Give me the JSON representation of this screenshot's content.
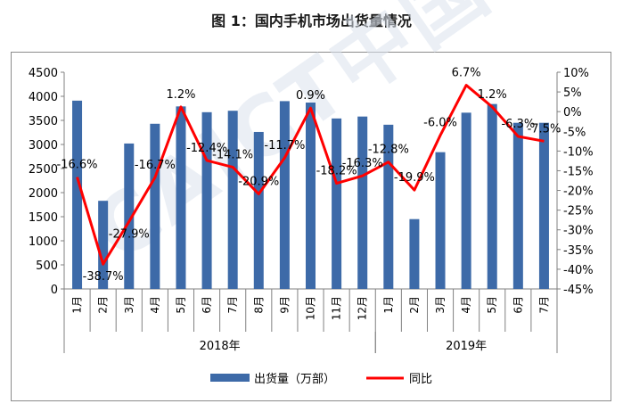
{
  "title": "图 1：国内手机市场出货量情况",
  "watermark": "CAICT中国信通院",
  "chart_data": {
    "type": "bar+line",
    "categories": [
      "1月",
      "2月",
      "3月",
      "4月",
      "5月",
      "6月",
      "7月",
      "8月",
      "9月",
      "10月",
      "11月",
      "12月",
      "1月",
      "2月",
      "3月",
      "4月",
      "5月",
      "6月",
      "7月"
    ],
    "groups": [
      {
        "label": "2018年",
        "start": 0,
        "end": 11
      },
      {
        "label": "2019年",
        "start": 12,
        "end": 18
      }
    ],
    "series": [
      {
        "name": "出货量（万部）",
        "type": "bar",
        "axis": "left",
        "color": "#3d6aa8",
        "values": [
          3910,
          1830,
          3020,
          3430,
          3790,
          3670,
          3700,
          3260,
          3900,
          3870,
          3540,
          3580,
          3410,
          1450,
          2840,
          3660,
          3840,
          3450,
          3450
        ]
      },
      {
        "name": "同比",
        "type": "line",
        "axis": "right",
        "color": "#ff0000",
        "values": [
          -16.6,
          -38.7,
          -27.9,
          -16.7,
          1.2,
          -12.4,
          -14.1,
          -20.9,
          -11.7,
          0.9,
          -18.2,
          -16.3,
          -12.8,
          -19.9,
          -6.0,
          6.7,
          1.2,
          -6.3,
          -7.5
        ],
        "labels": [
          "-16.6%",
          "-38.7%",
          "-27.9%",
          "-16.7%",
          "1.2%",
          "-12.4%",
          "-14.1%",
          "-20.9%",
          "-11.7%",
          "0.9%",
          "-18.2%",
          "-16.3%",
          "-12.8%",
          "-19.9%",
          "-6.0%",
          "6.7%",
          "1.2%",
          "-6.3%",
          "-7.5%"
        ]
      }
    ],
    "y_left": {
      "min": 0,
      "max": 4500,
      "step": 500,
      "ticks": [
        "0",
        "500",
        "1000",
        "1500",
        "2000",
        "2500",
        "3000",
        "3500",
        "4000",
        "4500"
      ]
    },
    "y_right": {
      "min": -45,
      "max": 10,
      "step": 5,
      "ticks": [
        "-45%",
        "-40%",
        "-35%",
        "-30%",
        "-25%",
        "-20%",
        "-15%",
        "-10%",
        "-5%",
        "0%",
        "5%",
        "10%"
      ]
    },
    "legend": {
      "position": "bottom",
      "items": [
        "出货量（万部）",
        "同比"
      ]
    }
  }
}
